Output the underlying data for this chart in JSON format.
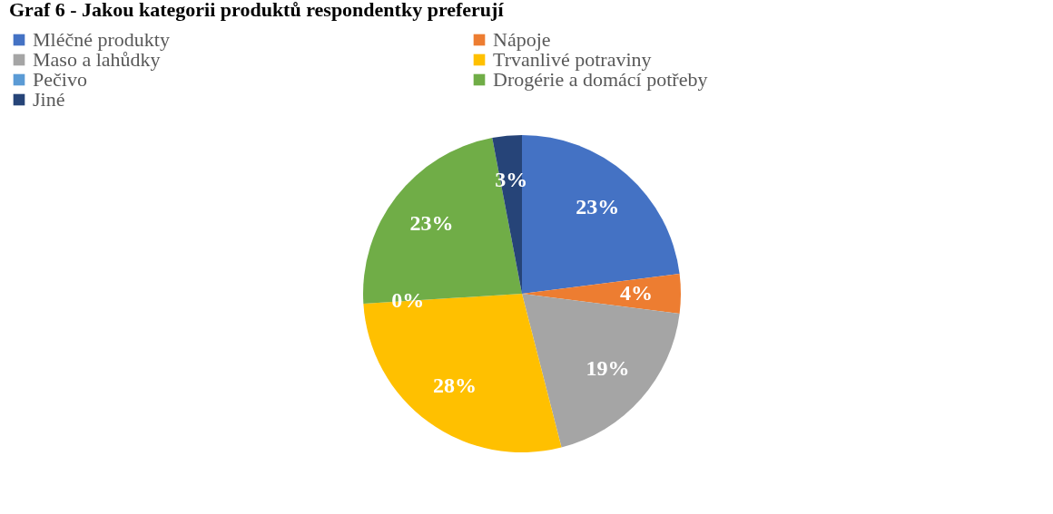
{
  "chart_data": {
    "type": "pie",
    "title": "Graf 6 - Jakou kategorii produktů respondentky preferují",
    "categories": [
      "Mléčné produkty",
      "Nápoje",
      "Maso a lahůdky",
      "Trvanlivé potraviny",
      "Pečivo",
      "Drogérie a domácí potřeby",
      "Jiné"
    ],
    "values": [
      23,
      4,
      19,
      28,
      0,
      23,
      3
    ],
    "value_labels": [
      "23%",
      "4%",
      "19%",
      "28%",
      "0%",
      "23%",
      "3%"
    ],
    "colors": [
      "#4472c4",
      "#ed7d31",
      "#a5a5a5",
      "#ffc000",
      "#5b9bd5",
      "#70ad47",
      "#264478"
    ],
    "legend": "top"
  }
}
